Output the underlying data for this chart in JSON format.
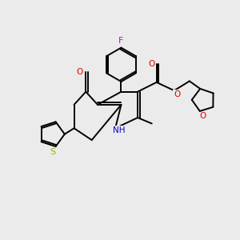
{
  "background_color": "#ebebeb",
  "figsize": [
    3.0,
    3.0
  ],
  "dpi": 100,
  "atom_colors": {
    "C": "#000000",
    "H": "#000000",
    "N": "#0000cc",
    "O": "#dd0000",
    "F": "#cc00cc",
    "S": "#aaaa00"
  },
  "bond_color": "#000000",
  "bond_width": 1.4
}
